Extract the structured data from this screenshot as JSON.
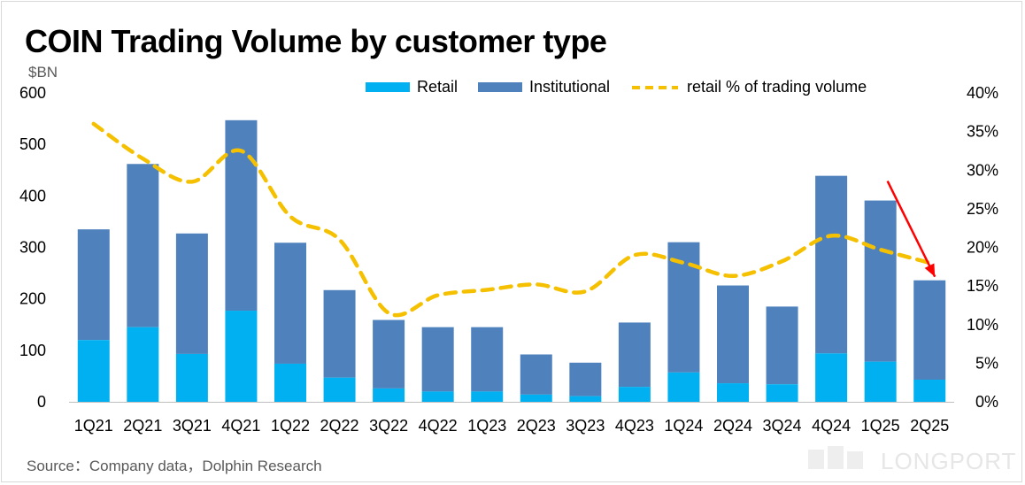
{
  "title": "COIN Trading Volume by customer type",
  "unit_label": "$BN",
  "source": "Source：Company data，Dolphin Research",
  "watermark": {
    "brand": "LONGPORT"
  },
  "legend": {
    "retail": "Retail",
    "institutional": "Institutional",
    "retail_pct": "retail % of trading volume"
  },
  "colors": {
    "retail": "#00b0f0",
    "institutional": "#4f81bd",
    "retail_pct": "#f5c000",
    "annotation_arrow": "#ff0000",
    "axis_text": "#000000"
  },
  "chart_data": {
    "type": "bar",
    "stacked": true,
    "categories": [
      "1Q21",
      "2Q21",
      "3Q21",
      "4Q21",
      "1Q22",
      "2Q22",
      "3Q22",
      "4Q22",
      "1Q23",
      "2Q23",
      "3Q23",
      "4Q23",
      "1Q24",
      "2Q24",
      "3Q24",
      "4Q24",
      "1Q25",
      "2Q25"
    ],
    "series": [
      {
        "name": "Retail",
        "type": "bar",
        "axis": "left",
        "values": [
          120,
          145,
          93,
          177,
          74,
          47,
          26,
          20,
          20,
          14,
          11,
          29,
          57,
          36,
          34,
          94,
          78,
          43
        ]
      },
      {
        "name": "Institutional",
        "type": "bar",
        "axis": "left",
        "values": [
          215,
          317,
          234,
          370,
          235,
          170,
          133,
          125,
          125,
          78,
          65,
          125,
          253,
          190,
          151,
          345,
          313,
          193
        ]
      },
      {
        "name": "retail % of trading volume",
        "type": "line",
        "axis": "right",
        "style": "dashed",
        "values": [
          0.36,
          0.315,
          0.285,
          0.325,
          0.24,
          0.21,
          0.115,
          0.138,
          0.145,
          0.152,
          0.143,
          0.19,
          0.18,
          0.163,
          0.182,
          0.215,
          0.197,
          0.18
        ]
      }
    ],
    "y_left": {
      "min": 0,
      "max": 600,
      "ticks": [
        0,
        100,
        200,
        300,
        400,
        500,
        600
      ]
    },
    "y_right": {
      "min": 0,
      "max": 0.4,
      "ticks": [
        "0%",
        "5%",
        "10%",
        "15%",
        "20%",
        "25%",
        "30%",
        "35%",
        "40%"
      ]
    },
    "annotation": {
      "type": "arrow",
      "from_category": "1Q25",
      "to_category": "2Q25"
    },
    "grid": false,
    "legend_position": "top"
  }
}
